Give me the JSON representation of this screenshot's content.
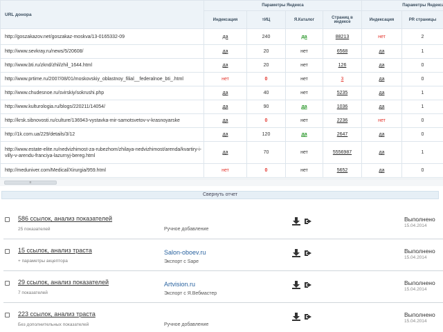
{
  "table": {
    "url_header": "URL донора",
    "group1_header": "Параметры Яндекса",
    "group2_header": "Параметры Яндекса",
    "col_headers": [
      "Индексация",
      "тИЦ",
      "Я.Каталог",
      "Страниц в индексе",
      "Индексация",
      "PR страницы"
    ],
    "rows": [
      {
        "url": "http://goszakazov.net/goszakaz-moskva/13-0165332-09",
        "ind": "да",
        "tic": "240",
        "cat": "да",
        "pages": "88213",
        "ind2": "нет",
        "pr": "2"
      },
      {
        "url": "http://www.sevkray.ru/news/5/20608/",
        "ind": "да",
        "tic": "20",
        "cat": "нет",
        "pages": "6568",
        "ind2": "да",
        "pr": "1"
      },
      {
        "url": "http://www.bti.ru/zknd/zhil/zhil_1644.html",
        "ind": "да",
        "tic": "20",
        "cat": "нет",
        "pages": "126",
        "ind2": "да",
        "pr": "0"
      },
      {
        "url": "http://www.prtime.ru/2007/08/01/moskovskiy_oblastnoy_filial__federalnoe_bti_.html",
        "ind": "нет",
        "tic": "0",
        "cat": "нет",
        "pages": "3",
        "ind2": "да",
        "pr": "0"
      },
      {
        "url": "http://www.chudesnoe.ru/svirskiy/sokrushi.php",
        "ind": "да",
        "tic": "40",
        "cat": "нет",
        "pages": "5235",
        "ind2": "да",
        "pr": "1"
      },
      {
        "url": "http://www.kulturologia.ru/blogs/220211/14054/",
        "ind": "да",
        "tic": "90",
        "cat": "да",
        "pages": "1036",
        "ind2": "да",
        "pr": "1"
      },
      {
        "url": "http://krsk.sibnovosti.ru/culture/136943-vystavka-mir-samotsvetov-v-krasnoyarske",
        "ind": "да",
        "tic": "0",
        "cat": "нет",
        "pages": "2236",
        "ind2": "нет",
        "pr": "0"
      },
      {
        "url": "http://1k.com.ua/229/details/3/12",
        "ind": "да",
        "tic": "120",
        "cat": "да",
        "pages": "2647",
        "ind2": "да",
        "pr": "0"
      },
      {
        "url": "http://www.estate-elite.ru/nedvizhimost-za-rubezhom/zhilaya-nedvizhimost/arenda/kvartiry-i-villy-v-arendu-franciya-lazurnyj-bereg.html",
        "ind": "да",
        "tic": "70",
        "cat": "нет",
        "pages": "5556987",
        "ind2": "да",
        "pr": "1"
      },
      {
        "url": "http://meduniver.com/Medical/Xirurgia/959.html",
        "ind": "нет",
        "tic": "0",
        "cat": "нет",
        "pages": "5652",
        "ind2": "да",
        "pr": "0"
      }
    ]
  },
  "scrollbar": {
    "thumb_label": "≡"
  },
  "collapse_label": "Свернуть отчет",
  "reports": [
    {
      "title": "586 ссылок, анализ показателей",
      "sub": "25 показателей",
      "site": "",
      "method": "Ручное добавление",
      "status": "Выполнено",
      "date": "15.04.2014"
    },
    {
      "title": "15 ссылок, анализ траста",
      "sub": "+ параметры акцептора",
      "site": "Salon-oboev.ru",
      "method": "Экспорт с Sape",
      "status": "Выполнено",
      "date": "15.04.2014"
    },
    {
      "title": "29 ссылок, анализ показателей",
      "sub": "7 показателей",
      "site": "Artvision.ru",
      "method": "Экспорт с Я.Вебмастер",
      "status": "Выполнено",
      "date": "15.04.2014"
    },
    {
      "title": "223 ссылок, анализ траста",
      "sub": "Без дополнительных показателей",
      "site": "",
      "method": "Ручное добавление",
      "status": "Выполнено",
      "date": "15.04.2014"
    }
  ],
  "icons": {
    "download": "download-icon",
    "export": "export-arrow-icon"
  },
  "colors": {
    "red": "#e3332b",
    "green": "#2f9a2f",
    "link": "#2a63a0",
    "header_bg": "#edf3f8"
  }
}
